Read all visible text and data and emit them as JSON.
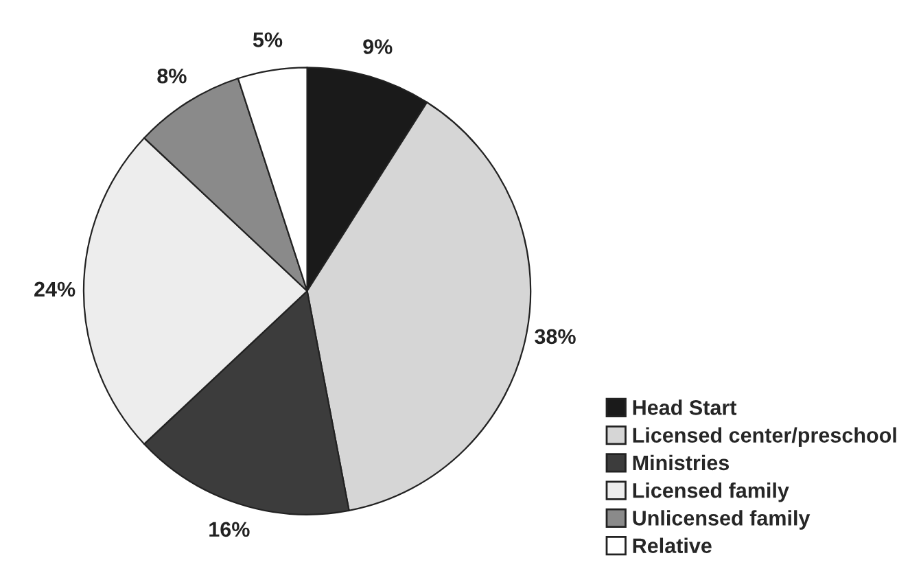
{
  "chart_data": {
    "type": "pie",
    "categories": [
      "Head Start",
      "Licensed center/preschool",
      "Ministries",
      "Licensed family",
      "Unlicensed family",
      "Relative"
    ],
    "values": [
      9,
      38,
      16,
      24,
      8,
      5
    ],
    "value_labels": [
      "9%",
      "38%",
      "16%",
      "24%",
      "8%",
      "5%"
    ],
    "colors": [
      "#1a1a1a",
      "#d6d6d6",
      "#3c3c3c",
      "#ededed",
      "#8a8a8a",
      "#ffffff"
    ],
    "legend": "bottom right"
  }
}
